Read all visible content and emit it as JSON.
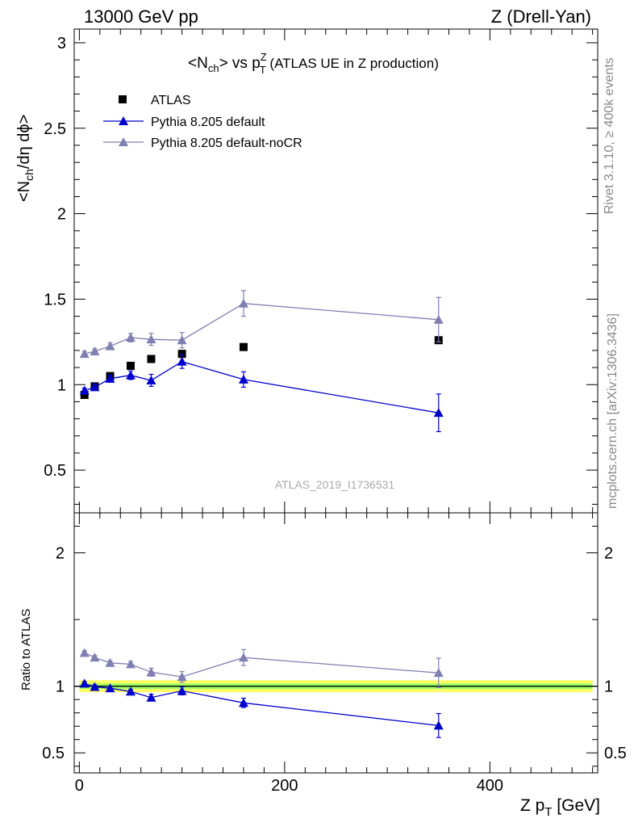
{
  "header": {
    "left": "13000 GeV pp",
    "right": "Z (Drell-Yan)"
  },
  "side_labels": {
    "rivet": "Rivet 3.1.10, ≥ 400k events",
    "site": "mcplots.cern.ch [arXiv:1306.3436]"
  },
  "watermark": "ATLAS_2019_I1736531",
  "colors": {
    "data": "#000000",
    "default": "#0000cc",
    "noCR": "#7f7fb2",
    "band_outer": "#ffff66",
    "band_inner": "#99ff66"
  },
  "chart_data": [
    {
      "type": "scatter",
      "title": "<Nch> vs pT^Z (ATLAS UE in Z production)",
      "title_parts": {
        "pre": "<N",
        "sub1": "ch",
        "mid": "> vs p",
        "sup": "Z",
        "sub2": "T",
        "post": " (ATLAS UE in Z production)"
      },
      "ylabel": "<Nch/dη dϕ>",
      "ylabel_parts": {
        "pre": "<N",
        "sub": "ch",
        "post": "/dη dϕ>"
      },
      "xlim": [
        -5,
        505
      ],
      "ylim": [
        0.25,
        3.08
      ],
      "yticks": [
        0.5,
        1,
        1.5,
        2,
        2.5,
        3
      ],
      "ytick_labels": [
        "0.5",
        "1",
        "1.5",
        "2",
        "2.5",
        "3"
      ],
      "legend": [
        "ATLAS",
        "Pythia 8.205 default",
        "Pythia 8.205 default-noCR"
      ],
      "series": [
        {
          "name": "ATLAS",
          "x": [
            5,
            15,
            30,
            50,
            70,
            100,
            160,
            350
          ],
          "y": [
            0.94,
            0.99,
            1.05,
            1.11,
            1.15,
            1.18,
            1.22,
            1.26
          ],
          "err": [
            0.01,
            0.01,
            0.01,
            0.01,
            0.01,
            0.01,
            0.01,
            0.01
          ]
        },
        {
          "name": "Pythia 8.205 default",
          "x": [
            5,
            15,
            30,
            50,
            70,
            100,
            160,
            350
          ],
          "y": [
            0.965,
            0.985,
            1.035,
            1.055,
            1.025,
            1.135,
            1.03,
            0.835
          ],
          "err": [
            0.015,
            0.015,
            0.02,
            0.025,
            0.035,
            0.04,
            0.045,
            0.11
          ]
        },
        {
          "name": "Pythia 8.205 default-noCR",
          "x": [
            5,
            15,
            30,
            50,
            70,
            100,
            160,
            350
          ],
          "y": [
            1.18,
            1.195,
            1.225,
            1.275,
            1.265,
            1.26,
            1.475,
            1.38
          ],
          "err": [
            0.015,
            0.015,
            0.02,
            0.025,
            0.035,
            0.045,
            0.075,
            0.13
          ]
        }
      ]
    },
    {
      "type": "scatter",
      "title": "Ratio to ATLAS",
      "ylabel": "Ratio to ATLAS",
      "xlabel": "Z pT [GeV]",
      "xlabel_parts": {
        "pre": "Z p",
        "sub": "T",
        "post": " [GeV]"
      },
      "xlim": [
        -5,
        505
      ],
      "ylim": [
        0.35,
        2.3
      ],
      "xticks": [
        0,
        200,
        400
      ],
      "xtick_labels": [
        "0",
        "200",
        "400"
      ],
      "yticks": [
        0.5,
        1,
        2
      ],
      "ytick_labels": [
        "0.5",
        "1",
        "2"
      ],
      "reference": 1.0,
      "band_inner": 0.02,
      "band_outer": 0.045,
      "series": [
        {
          "name": "Pythia 8.205 default",
          "x": [
            5,
            15,
            30,
            50,
            70,
            100,
            160,
            350
          ],
          "y": [
            1.02,
            0.995,
            0.985,
            0.96,
            0.915,
            0.965,
            0.875,
            0.705
          ],
          "err": [
            0.015,
            0.015,
            0.015,
            0.015,
            0.025,
            0.03,
            0.035,
            0.09
          ]
        },
        {
          "name": "Pythia 8.205 default-noCR",
          "x": [
            5,
            15,
            30,
            50,
            70,
            100,
            160,
            350
          ],
          "y": [
            1.25,
            1.215,
            1.175,
            1.165,
            1.105,
            1.07,
            1.215,
            1.1
          ],
          "err": [
            0.015,
            0.015,
            0.015,
            0.02,
            0.03,
            0.04,
            0.06,
            0.11
          ]
        }
      ]
    }
  ]
}
